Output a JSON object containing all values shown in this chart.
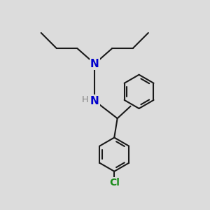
{
  "background_color": "#dcdcdc",
  "bond_color": "#1a1a1a",
  "N_color": "#0000cc",
  "Cl_color": "#1a8c1a",
  "H_color": "#808080",
  "linewidth": 1.5,
  "figsize": [
    3.0,
    3.0
  ],
  "dpi": 100,
  "xlim": [
    0,
    10
  ],
  "ylim": [
    0,
    10
  ]
}
